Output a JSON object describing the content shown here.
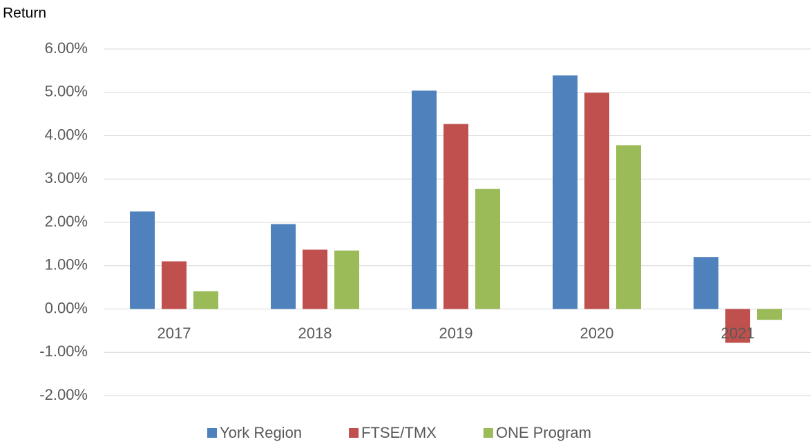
{
  "chart_data": {
    "type": "bar",
    "y_axis_label": "Return",
    "categories": [
      "2017",
      "2018",
      "2019",
      "2020",
      "2021"
    ],
    "series": [
      {
        "name": "York Region",
        "color": "#4f81bd",
        "values": [
          2.25,
          1.96,
          5.04,
          5.39,
          1.2
        ]
      },
      {
        "name": "FTSE/TMX",
        "color": "#c0504d",
        "values": [
          1.1,
          1.37,
          4.27,
          4.99,
          -0.78
        ]
      },
      {
        "name": "ONE Program",
        "color": "#9bbb59",
        "values": [
          0.41,
          1.35,
          2.77,
          3.78,
          -0.25
        ]
      }
    ],
    "ylim": [
      -2,
      6
    ],
    "yticks": [
      {
        "value": -2,
        "label": "-2.00%"
      },
      {
        "value": -1,
        "label": "-1.00%"
      },
      {
        "value": 0,
        "label": "0.00%"
      },
      {
        "value": 1,
        "label": "1.00%"
      },
      {
        "value": 2,
        "label": "2.00%"
      },
      {
        "value": 3,
        "label": "3.00%"
      },
      {
        "value": 4,
        "label": "4.00%"
      },
      {
        "value": 5,
        "label": "5.00%"
      },
      {
        "value": 6,
        "label": "6.00%"
      }
    ],
    "grid": true,
    "legend": "bottom"
  }
}
